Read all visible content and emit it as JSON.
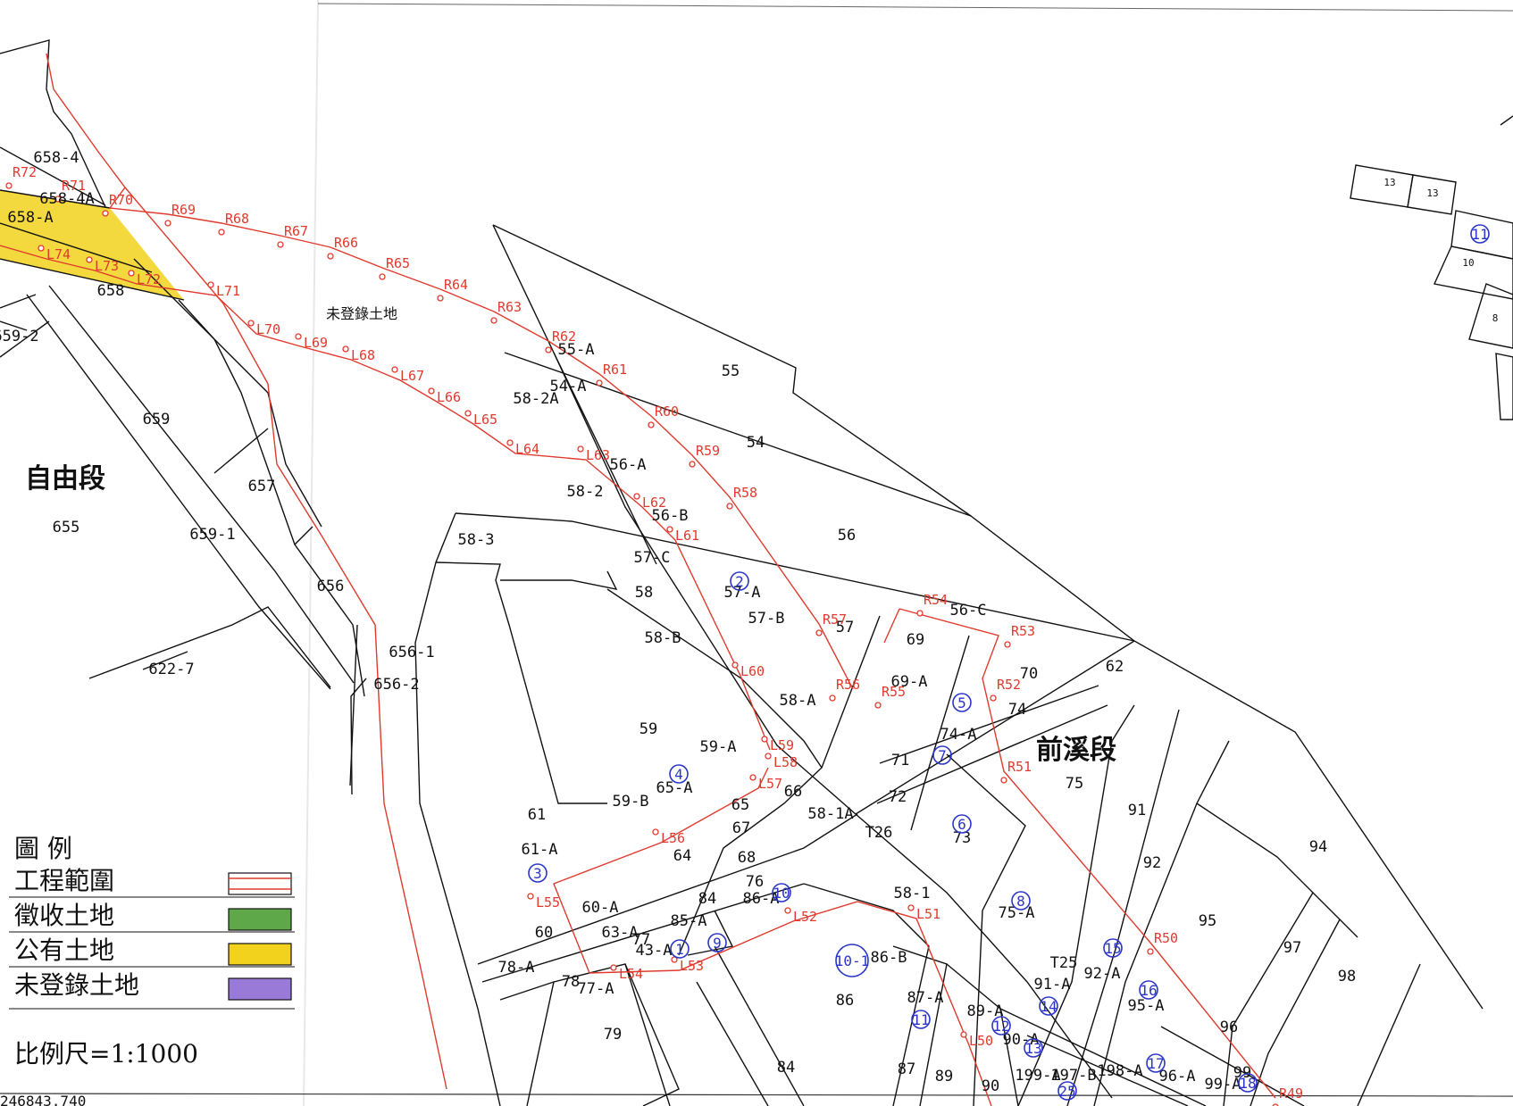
{
  "districts": {
    "ziyou": "自由段",
    "qianxi": "前溪段",
    "unregistered": "未登錄土地"
  },
  "legend": {
    "title": "圖 例",
    "items": [
      {
        "label": "工程範圍",
        "swatch": "#ffffff"
      },
      {
        "label": "徵收土地",
        "swatch": "#5fa84a"
      },
      {
        "label": "公有土地",
        "swatch": "#f2d21c"
      },
      {
        "label": "未登錄土地",
        "swatch": "#9a7ad8"
      }
    ],
    "scale": "比例尺=1:1000"
  },
  "parcels": [
    [
      "658-4",
      63,
      182
    ],
    [
      "658-4A",
      75,
      228
    ],
    [
      "658-A",
      34,
      249
    ],
    [
      "658",
      124,
      331
    ],
    [
      "659-2",
      18,
      382
    ],
    [
      "659",
      175,
      475
    ],
    [
      "657",
      293,
      550
    ],
    [
      "655",
      74,
      596
    ],
    [
      "659-1",
      238,
      604
    ],
    [
      "656",
      370,
      662
    ],
    [
      "656-1",
      461,
      736
    ],
    [
      "656-2",
      444,
      772
    ],
    [
      "622-7",
      192,
      755
    ],
    [
      "55-A",
      645,
      397
    ],
    [
      "54-A",
      636,
      438
    ],
    [
      "58-2A",
      600,
      452
    ],
    [
      "55",
      818,
      421
    ],
    [
      "54",
      846,
      501
    ],
    [
      "56-A",
      703,
      526
    ],
    [
      "58-2",
      655,
      556
    ],
    [
      "56",
      948,
      605
    ],
    [
      "58-3",
      533,
      610
    ],
    [
      "56-B",
      750,
      583
    ],
    [
      "57-C",
      730,
      630
    ],
    [
      "58",
      721,
      669
    ],
    [
      "57-A",
      831,
      669
    ],
    [
      "57-B",
      858,
      698
    ],
    [
      "58-B",
      742,
      720
    ],
    [
      "57",
      946,
      708
    ],
    [
      "69",
      1025,
      722
    ],
    [
      "56-C",
      1084,
      689
    ],
    [
      "69-A",
      1018,
      769
    ],
    [
      "70",
      1152,
      760
    ],
    [
      "62",
      1248,
      752
    ],
    [
      "74",
      1139,
      800
    ],
    [
      "58-A",
      893,
      790
    ],
    [
      "59",
      726,
      822
    ],
    [
      "59-A",
      804,
      842
    ],
    [
      "74-A",
      1073,
      828
    ],
    [
      "71",
      1008,
      857
    ],
    [
      "75",
      1203,
      883
    ],
    [
      "65-A",
      755,
      888
    ],
    [
      "59-B",
      706,
      903
    ],
    [
      "65",
      829,
      907
    ],
    [
      "66",
      888,
      892
    ],
    [
      "72",
      1005,
      898
    ],
    [
      "58-1A",
      930,
      917
    ],
    [
      "91",
      1273,
      913
    ],
    [
      "61",
      601,
      918
    ],
    [
      "67",
      830,
      933
    ],
    [
      "73",
      1077,
      944
    ],
    [
      "61-A",
      604,
      957
    ],
    [
      "64",
      764,
      964
    ],
    [
      "68",
      836,
      966
    ],
    [
      "92",
      1290,
      972
    ],
    [
      "94",
      1476,
      954
    ],
    [
      "76",
      845,
      993
    ],
    [
      "86-A",
      852,
      1012
    ],
    [
      "58-1",
      1021,
      1006
    ],
    [
      "75-A",
      1138,
      1028
    ],
    [
      "60-A",
      672,
      1022
    ],
    [
      "63-A",
      694,
      1050
    ],
    [
      "60",
      609,
      1050
    ],
    [
      "85-A",
      771,
      1037
    ],
    [
      "84",
      792,
      1012
    ],
    [
      "77",
      718,
      1058
    ],
    [
      "43-A",
      732,
      1070
    ],
    [
      "95",
      1352,
      1037
    ],
    [
      "97",
      1447,
      1067
    ],
    [
      "98",
      1508,
      1099
    ],
    [
      "78-A",
      578,
      1089
    ],
    [
      "86-B",
      995,
      1078
    ],
    [
      "T25",
      1191,
      1084
    ],
    [
      "92-A",
      1234,
      1096
    ],
    [
      "91-A",
      1178,
      1108
    ],
    [
      "95-A",
      1283,
      1132
    ],
    [
      "78",
      639,
      1105
    ],
    [
      "77-A",
      667,
      1113
    ],
    [
      "87-A",
      1036,
      1123
    ],
    [
      "86",
      946,
      1126
    ],
    [
      "89-A",
      1103,
      1138
    ],
    [
      "96",
      1376,
      1156
    ],
    [
      "79",
      686,
      1164
    ],
    [
      "90-A",
      1143,
      1170
    ],
    [
      "87",
      1015,
      1203
    ],
    [
      "84",
      880,
      1201
    ],
    [
      "89",
      1057,
      1211
    ],
    [
      "90",
      1109,
      1222
    ],
    [
      "99",
      1391,
      1207
    ],
    [
      "99-A",
      1369,
      1220
    ],
    [
      "96-A",
      1318,
      1211
    ],
    [
      "198-A",
      1254,
      1205
    ],
    [
      "197-B",
      1202,
      1210
    ],
    [
      "199-A",
      1162,
      1210
    ],
    [
      "T26",
      984,
      938
    ]
  ],
  "points_right": [
    [
      "R72",
      10,
      198
    ],
    [
      "R71",
      65,
      213
    ],
    [
      "R70",
      118,
      229
    ],
    [
      "R69",
      188,
      240
    ],
    [
      "R68",
      248,
      250
    ],
    [
      "R67",
      314,
      264
    ],
    [
      "R66",
      370,
      277
    ],
    [
      "R65",
      428,
      300
    ],
    [
      "R64",
      493,
      324
    ],
    [
      "R63",
      553,
      349
    ],
    [
      "R62",
      614,
      382
    ],
    [
      "R61",
      671,
      419
    ],
    [
      "R60",
      729,
      466
    ],
    [
      "R59",
      775,
      510
    ],
    [
      "R58",
      817,
      557
    ],
    [
      "R57",
      917,
      699
    ],
    [
      "R56",
      932,
      772
    ],
    [
      "R55",
      983,
      780
    ],
    [
      "R54",
      1030,
      677
    ],
    [
      "R53",
      1128,
      712
    ],
    [
      "R52",
      1112,
      772
    ],
    [
      "R51",
      1124,
      864
    ],
    [
      "R50",
      1288,
      1056
    ],
    [
      "R49",
      1428,
      1230
    ]
  ],
  "points_left": [
    [
      "L74",
      52,
      290
    ],
    [
      "L73",
      106,
      303
    ],
    [
      "L72",
      153,
      318
    ],
    [
      "L71",
      242,
      331
    ],
    [
      "L70",
      287,
      374
    ],
    [
      "L69",
      340,
      389
    ],
    [
      "L68",
      393,
      403
    ],
    [
      "L67",
      448,
      426
    ],
    [
      "L66",
      489,
      450
    ],
    [
      "L65",
      530,
      475
    ],
    [
      "L64",
      577,
      508
    ],
    [
      "L63",
      656,
      515
    ],
    [
      "L62",
      719,
      568
    ],
    [
      "L61",
      756,
      605
    ],
    [
      "L60",
      829,
      757
    ],
    [
      "L59",
      862,
      840
    ],
    [
      "L58",
      866,
      859
    ],
    [
      "L57",
      849,
      883
    ],
    [
      "L56",
      740,
      944
    ],
    [
      "L55",
      600,
      1016
    ],
    [
      "L54",
      693,
      1096
    ],
    [
      "L53",
      761,
      1087
    ],
    [
      "L52",
      888,
      1032
    ],
    [
      "L51",
      1026,
      1029
    ],
    [
      "L50",
      1085,
      1171
    ]
  ],
  "circled": [
    [
      "1",
      761,
      1063
    ],
    [
      "2",
      828,
      651
    ],
    [
      "3",
      602,
      978
    ],
    [
      "4",
      760,
      867
    ],
    [
      "5",
      1077,
      787
    ],
    [
      "6",
      1077,
      923
    ],
    [
      "7",
      1055,
      846
    ],
    [
      "8",
      1143,
      1009
    ],
    [
      "9",
      803,
      1056
    ],
    [
      "10",
      875,
      1000
    ],
    [
      "10-1",
      954,
      1076
    ],
    [
      "11",
      1031,
      1142
    ],
    [
      "12",
      1121,
      1149
    ],
    [
      "13",
      1157,
      1174
    ],
    [
      "14",
      1174,
      1127
    ],
    [
      "15",
      1246,
      1062
    ],
    [
      "16",
      1286,
      1109
    ],
    [
      "17",
      1294,
      1191
    ],
    [
      "18",
      1397,
      1213
    ],
    [
      "25",
      1195,
      1222
    ],
    [
      "11",
      1657,
      262
    ]
  ],
  "mini_grid_labels": [
    [
      "13",
      1556,
      208
    ],
    [
      "13",
      1604,
      220
    ],
    [
      "10",
      1644,
      298
    ],
    [
      "8",
      1674,
      360
    ]
  ],
  "bottom_coord": "246843.740"
}
